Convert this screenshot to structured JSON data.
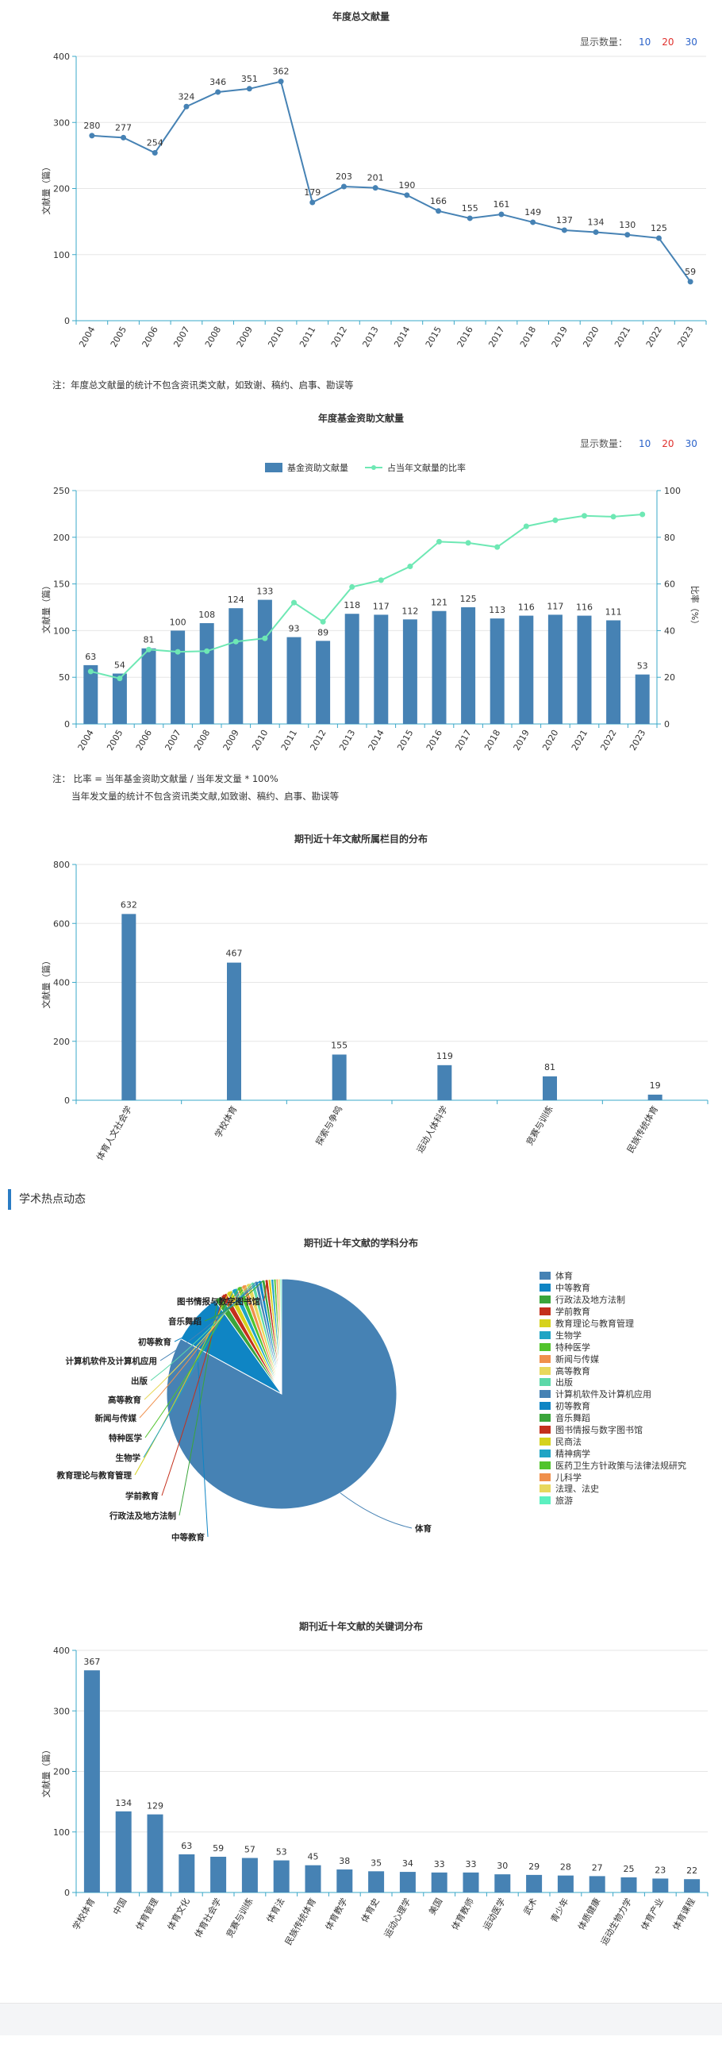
{
  "display_count": {
    "label": "显示数量：",
    "options": [
      "10",
      "20",
      "30"
    ]
  },
  "section": {
    "label": "学术热点动态"
  },
  "chart_data": [
    {
      "id": "annual",
      "type": "line",
      "title": "年度总文献量",
      "ylabel": "文献量（篇）",
      "ylim": [
        0,
        400
      ],
      "yticks": [
        "0",
        "100",
        "200",
        "300",
        "400"
      ],
      "x": [
        "2004",
        "2005",
        "2006",
        "2007",
        "2008",
        "2009",
        "2010",
        "2011",
        "2012",
        "2013",
        "2014",
        "2015",
        "2016",
        "2017",
        "2018",
        "2019",
        "2020",
        "2021",
        "2022",
        "2023"
      ],
      "values": [
        280,
        277,
        254,
        324,
        346,
        351,
        362,
        179,
        203,
        201,
        190,
        166,
        155,
        161,
        149,
        137,
        134,
        130,
        125,
        59
      ],
      "note": "注：年度总文献量的统计不包含资讯类文献，如致谢、稿约、启事、勘误等"
    },
    {
      "id": "fund",
      "type": "bar",
      "title": "年度基金资助文献量",
      "legend": [
        "基金资助文献量",
        "占当年文献量的比率"
      ],
      "ylabel": "文献量（篇）",
      "y2label": "比率（%）",
      "ylim": [
        0,
        250
      ],
      "yticks": [
        "0",
        "50",
        "100",
        "150",
        "200",
        "250"
      ],
      "y2lim": [
        0,
        100
      ],
      "y2ticks": [
        "0",
        "20",
        "40",
        "60",
        "80",
        "100"
      ],
      "categories": [
        "2004",
        "2005",
        "2006",
        "2007",
        "2008",
        "2009",
        "2010",
        "2011",
        "2012",
        "2013",
        "2014",
        "2015",
        "2016",
        "2017",
        "2018",
        "2019",
        "2020",
        "2021",
        "2022",
        "2023"
      ],
      "values": [
        63,
        54,
        81,
        100,
        108,
        124,
        133,
        93,
        89,
        118,
        117,
        112,
        121,
        125,
        113,
        116,
        117,
        116,
        111,
        53
      ],
      "ratio": [
        22.5,
        19.5,
        31.9,
        30.9,
        31.2,
        35.3,
        36.7,
        52.0,
        43.8,
        58.7,
        61.6,
        67.5,
        78.1,
        77.6,
        75.8,
        84.7,
        87.3,
        89.2,
        88.8,
        89.8
      ],
      "note": [
        "注：   比率 = 当年基金资助文献量 / 当年发文量 * 100%",
        "当年发文量的统计不包含资讯类文献,如致谢、稿约、启事、勘误等"
      ]
    },
    {
      "id": "column",
      "type": "bar",
      "title": "期刊近十年文献所属栏目的分布",
      "ylabel": "文献量（篇）",
      "ylim": [
        0,
        800
      ],
      "yticks": [
        "0",
        "200",
        "400",
        "600",
        "800"
      ],
      "categories": [
        "体育人文社会学",
        "学校体育",
        "探索与争鸣",
        "运动人体科学",
        "竞赛与训练",
        "民族传统体育"
      ],
      "values": [
        632,
        467,
        155,
        119,
        81,
        19
      ]
    },
    {
      "id": "subject",
      "type": "pie",
      "title": "期刊近十年文献的学科分布",
      "labels": [
        "体育",
        "中等教育",
        "行政法及地方法制",
        "学前教育",
        "教育理论与教育管理",
        "生物学",
        "特种医学",
        "新闻与传媒",
        "高等教育",
        "出版",
        "计算机软件及计算机应用",
        "初等教育",
        "音乐舞蹈",
        "图书情报与数字图书馆",
        "民商法",
        "精神病学",
        "医药卫生方针政策与法律法规研究",
        "儿科学",
        "法理、法史",
        "旅游"
      ],
      "values": [
        1500,
        130,
        18,
        16,
        15,
        14,
        13,
        12,
        12,
        10,
        9,
        9,
        8,
        8,
        7,
        7,
        6,
        5,
        5,
        4
      ],
      "colors": [
        "#4682b4",
        "#0f85c4",
        "#3aa53a",
        "#c4301c",
        "#d6d21c",
        "#1fa4c4",
        "#52c42c",
        "#f0904c",
        "#e8d85c",
        "#5cd8a8",
        "#4682b4",
        "#0f85c4",
        "#3aa53a",
        "#c4301c",
        "#d6d21c",
        "#1fa4c4",
        "#52c42c",
        "#f0904c",
        "#e8d85c",
        "#5cf0c0"
      ],
      "callouts": [
        "体育",
        "中等教育",
        "行政法及地方法制",
        "学前教育",
        "教育理论与教育管理",
        "生物学",
        "特种医学",
        "新闻与传媒",
        "高等教育",
        "出版",
        "计算机软件及计算机应用",
        "初等教育",
        "音乐舞蹈",
        "图书情报与数字图书馆"
      ]
    },
    {
      "id": "keyword",
      "type": "bar",
      "title": "期刊近十年文献的关键词分布",
      "ylabel": "文献量（篇）",
      "ylim": [
        0,
        400
      ],
      "yticks": [
        "0",
        "100",
        "200",
        "300",
        "400"
      ],
      "categories": [
        "学校体育",
        "中国",
        "体育管理",
        "体育文化",
        "体育社会学",
        "竞赛与训练",
        "体育法",
        "民族传统体育",
        "体育教学",
        "体育史",
        "运动心理学",
        "美国",
        "体育教师",
        "运动医学",
        "武术",
        "青少年",
        "体质健康",
        "运动生物力学",
        "体育产业",
        "体育课程"
      ],
      "values": [
        367,
        134,
        129,
        63,
        59,
        57,
        53,
        45,
        38,
        35,
        34,
        33,
        33,
        30,
        29,
        28,
        27,
        25,
        23,
        22
      ]
    }
  ]
}
